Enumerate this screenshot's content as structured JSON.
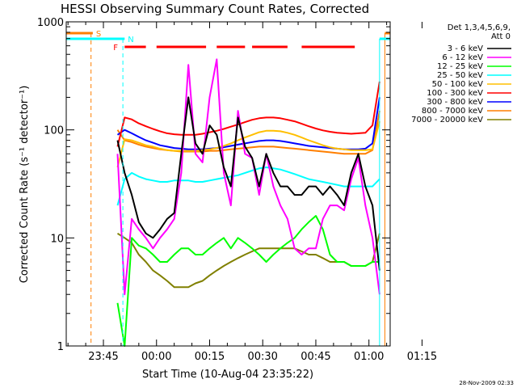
{
  "chart_data": {
    "type": "line",
    "title": "HESSI Observing Summary Count Rates, Corrected",
    "xlabel": "Start Time (10-Aug-04 23:35:22)",
    "ylabel": "Corrected Count Rate (s⁻¹ detector⁻¹)",
    "y_scale": "log",
    "ylim": [
      1,
      1000
    ],
    "y_ticks": [
      {
        "value": 1,
        "label": "1"
      },
      {
        "value": 10,
        "label": "10"
      },
      {
        "value": 100,
        "label": "100"
      },
      {
        "value": 1000,
        "label": "1000"
      }
    ],
    "xlim_min": [
      -10.5,
      81
    ],
    "x_ticks": [
      {
        "min": 0,
        "label": "23:45"
      },
      {
        "min": 15,
        "label": "00:00"
      },
      {
        "min": 30,
        "label": "00:15"
      },
      {
        "min": 45,
        "label": "00:30"
      },
      {
        "min": 60,
        "label": "00:45"
      },
      {
        "min": 75,
        "label": "01:00"
      },
      {
        "min": 90,
        "label": "01:15"
      }
    ],
    "legend": {
      "header": [
        "Det 1,3,4,5,6,9,",
        "Att 0"
      ],
      "placement": "right"
    },
    "timestamp": "28-Nov-2009 02:33",
    "annotations": [
      {
        "label": "S",
        "color": "#ff7f00",
        "flag_ranges": [
          [
            -10.5,
            -3
          ],
          [
            79.5,
            81
          ]
        ],
        "markers": [
          -3.5,
          79.5
        ]
      },
      {
        "label": "N",
        "color": "#00ffff",
        "flag_ranges": [
          [
            -10.5,
            6
          ],
          [
            78,
            81
          ]
        ],
        "markers": [
          5.5,
          78
        ]
      },
      {
        "label": "F",
        "color": "#ff0000",
        "flag_ranges": [
          [
            6,
            12
          ],
          [
            15,
            29
          ],
          [
            32,
            40
          ],
          [
            42,
            52
          ],
          [
            56,
            71
          ]
        ]
      }
    ],
    "series": [
      {
        "name": "3 - 6 keV",
        "color": "#000000",
        "x": [
          4,
          6,
          8,
          10,
          12,
          14,
          16,
          18,
          20,
          22,
          24,
          26,
          28,
          30,
          32,
          34,
          36,
          38,
          40,
          42,
          44,
          46,
          48,
          50,
          52,
          54,
          56,
          58,
          60,
          62,
          64,
          66,
          68,
          70,
          72,
          74,
          76,
          78
        ],
        "y": [
          80,
          40,
          25,
          14,
          11,
          10,
          12,
          15,
          17,
          60,
          200,
          75,
          60,
          110,
          90,
          45,
          30,
          130,
          70,
          55,
          30,
          60,
          40,
          30,
          30,
          25,
          25,
          30,
          30,
          25,
          30,
          25,
          20,
          40,
          60,
          30,
          20,
          5
        ]
      },
      {
        "name": "6 - 12 keV",
        "color": "#ff00ff",
        "x": [
          4,
          6,
          8,
          10,
          12,
          14,
          16,
          18,
          20,
          22,
          24,
          26,
          28,
          30,
          32,
          34,
          36,
          38,
          40,
          42,
          44,
          46,
          48,
          50,
          52,
          54,
          56,
          58,
          60,
          62,
          64,
          66,
          68,
          70,
          72,
          74,
          76,
          78
        ],
        "y": [
          60,
          3,
          15,
          12,
          10,
          8,
          10,
          12,
          15,
          40,
          400,
          60,
          50,
          200,
          450,
          40,
          20,
          150,
          60,
          55,
          25,
          60,
          30,
          20,
          15,
          8,
          7,
          8,
          8,
          15,
          20,
          20,
          18,
          35,
          55,
          20,
          10,
          3
        ]
      },
      {
        "name": "12 - 25 keV",
        "color": "#00ff00",
        "x": [
          4,
          6,
          8,
          10,
          12,
          14,
          16,
          18,
          20,
          22,
          24,
          26,
          28,
          30,
          32,
          34,
          36,
          38,
          40,
          42,
          44,
          46,
          48,
          50,
          52,
          54,
          56,
          58,
          60,
          62,
          64,
          66,
          68,
          70,
          72,
          74,
          76,
          78
        ],
        "y": [
          2.5,
          1,
          10,
          8.5,
          8,
          7,
          6,
          6,
          7,
          8,
          8,
          7,
          7,
          8,
          9,
          10,
          8,
          10,
          9,
          8,
          7,
          6,
          7,
          8,
          9,
          10,
          12,
          14,
          16,
          12,
          7,
          6,
          6,
          5.5,
          5.5,
          5.5,
          6,
          6
        ]
      },
      {
        "name": "25 - 50 keV",
        "color": "#00ffff",
        "x": [
          4,
          6,
          8,
          10,
          12,
          14,
          16,
          18,
          20,
          22,
          24,
          26,
          28,
          30,
          32,
          34,
          36,
          38,
          40,
          42,
          44,
          46,
          48,
          50,
          52,
          54,
          56,
          58,
          60,
          62,
          64,
          66,
          68,
          70,
          72,
          74,
          76,
          78
        ],
        "y": [
          20,
          35,
          40,
          37,
          35,
          34,
          33,
          33,
          34,
          34,
          34,
          33,
          33,
          34,
          35,
          36,
          37,
          38,
          40,
          42,
          44,
          45,
          44,
          43,
          41,
          39,
          37,
          35,
          34,
          33,
          32,
          31,
          30,
          30,
          30,
          30,
          30,
          35
        ]
      },
      {
        "name": "50 - 100 keV",
        "color": "#ffbf00",
        "x": [
          4,
          6,
          8,
          10,
          12,
          14,
          16,
          18,
          20,
          22,
          24,
          26,
          28,
          30,
          32,
          34,
          36,
          38,
          40,
          42,
          44,
          46,
          48,
          50,
          52,
          54,
          56,
          58,
          60,
          62,
          64,
          66,
          68,
          70,
          72,
          74,
          76,
          78
        ],
        "y": [
          45,
          82,
          80,
          76,
          72,
          70,
          67,
          65,
          64,
          64,
          64,
          64,
          65,
          66,
          68,
          71,
          75,
          80,
          85,
          90,
          95,
          98,
          98,
          97,
          94,
          90,
          85,
          80,
          76,
          72,
          69,
          67,
          66,
          65,
          65,
          65,
          66,
          120
        ]
      },
      {
        "name": "100 - 300 keV",
        "color": "#ff0000",
        "x": [
          4,
          6,
          8,
          10,
          12,
          14,
          16,
          18,
          20,
          22,
          24,
          26,
          28,
          30,
          32,
          34,
          36,
          38,
          40,
          42,
          44,
          46,
          48,
          50,
          52,
          54,
          56,
          58,
          60,
          62,
          64,
          66,
          68,
          70,
          72,
          74,
          76,
          78
        ],
        "y": [
          70,
          130,
          125,
          115,
          108,
          102,
          97,
          93,
          91,
          90,
          90,
          90,
          92,
          95,
          98,
          102,
          107,
          112,
          118,
          124,
          128,
          130,
          130,
          128,
          124,
          120,
          114,
          108,
          103,
          99,
          96,
          94,
          93,
          92,
          93,
          94,
          110,
          280
        ]
      },
      {
        "name": "300 - 800 keV",
        "color": "#0000ff",
        "x": [
          4,
          6,
          8,
          10,
          12,
          14,
          16,
          18,
          20,
          22,
          24,
          26,
          28,
          30,
          32,
          34,
          36,
          38,
          40,
          42,
          44,
          46,
          48,
          50,
          52,
          54,
          56,
          58,
          60,
          62,
          64,
          66,
          68,
          70,
          72,
          74,
          76,
          78
        ],
        "y": [
          90,
          100,
          93,
          86,
          80,
          76,
          72,
          70,
          68,
          67,
          66,
          66,
          66,
          67,
          68,
          69,
          71,
          73,
          75,
          77,
          79,
          80,
          80,
          79,
          77,
          75,
          73,
          71,
          70,
          69,
          68,
          67,
          66,
          66,
          66,
          67,
          75,
          200
        ]
      },
      {
        "name": "800 - 7000 keV",
        "color": "#ff7f00",
        "x": [
          4,
          6,
          8,
          10,
          12,
          14,
          16,
          18,
          20,
          22,
          24,
          26,
          28,
          30,
          32,
          34,
          36,
          38,
          40,
          42,
          44,
          46,
          48,
          50,
          52,
          54,
          56,
          58,
          60,
          62,
          64,
          66,
          68,
          70,
          72,
          74,
          76,
          78
        ],
        "y": [
          100,
          80,
          77,
          73,
          70,
          68,
          66,
          65,
          64,
          63,
          63,
          63,
          63,
          64,
          64,
          65,
          66,
          67,
          68,
          69,
          70,
          70,
          70,
          69,
          68,
          67,
          66,
          65,
          64,
          63,
          62,
          61,
          60,
          60,
          60,
          60,
          65,
          150
        ]
      },
      {
        "name": "7000 - 20000 keV",
        "color": "#808000",
        "x": [
          4,
          6,
          8,
          10,
          12,
          14,
          16,
          18,
          20,
          22,
          24,
          26,
          28,
          30,
          32,
          34,
          36,
          38,
          40,
          42,
          44,
          46,
          48,
          50,
          52,
          54,
          56,
          58,
          60,
          62,
          64,
          66,
          68,
          70,
          72,
          74,
          76,
          78
        ],
        "y": [
          11,
          10,
          9,
          7,
          6,
          5,
          4.5,
          4,
          3.5,
          3.5,
          3.5,
          3.8,
          4,
          4.5,
          5,
          5.5,
          6,
          6.5,
          7,
          7.5,
          8,
          8,
          8,
          8,
          8,
          8,
          7.5,
          7,
          7,
          6.5,
          6,
          6,
          6,
          5.5,
          5.5,
          5.5,
          6,
          11
        ]
      }
    ]
  }
}
